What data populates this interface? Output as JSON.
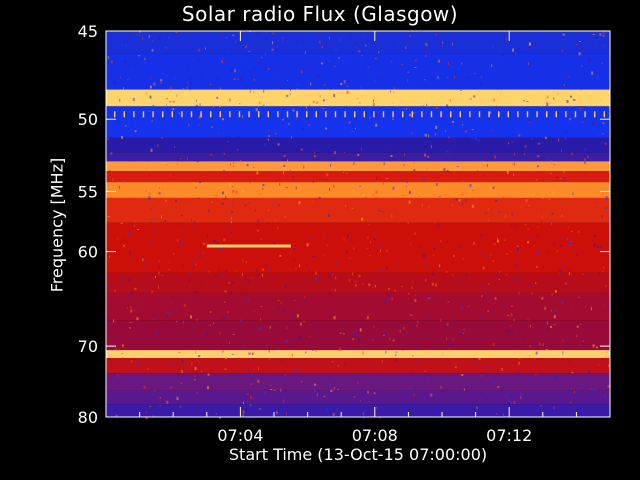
{
  "chart_data": {
    "type": "heatmap",
    "title": "Solar radio Flux (Glasgow)",
    "xlabel": "Start Time (13-Oct-15 07:00:00)",
    "ylabel": "Frequency [MHz]",
    "x_ticks": [
      "07:04",
      "07:08",
      "07:12"
    ],
    "x_tick_minutes": [
      4,
      8,
      12
    ],
    "xlim_minutes": [
      0,
      15
    ],
    "y_ticks": [
      45,
      50,
      55,
      60,
      70,
      80
    ],
    "ylim": [
      45,
      80
    ],
    "y_scale": "reciprocal",
    "bands": [
      {
        "range": [
          45,
          46.2
        ],
        "color": "#1b2fd8"
      },
      {
        "range": [
          46.2,
          48.2
        ],
        "color": "#1530e6"
      },
      {
        "range": [
          48.2,
          49.2
        ],
        "color": "#ffd46a"
      },
      {
        "range": [
          49.2,
          51.2
        ],
        "color": "#1533ec"
      },
      {
        "range": [
          51.2,
          52.2
        ],
        "color": "#2a1aa8"
      },
      {
        "range": [
          52.2,
          52.8
        ],
        "color": "#3a1da0"
      },
      {
        "range": [
          52.8,
          53.5
        ],
        "color": "#ff9a3a"
      },
      {
        "range": [
          53.5,
          54.3
        ],
        "color": "#d81a10"
      },
      {
        "range": [
          54.3,
          55.5
        ],
        "color": "#ff8a2a"
      },
      {
        "range": [
          55.5,
          57.5
        ],
        "color": "#e02a10"
      },
      {
        "range": [
          57.5,
          62.0
        ],
        "color": "#cc0f08"
      },
      {
        "range": [
          62.0,
          64.0
        ],
        "color": "#b70c1a"
      },
      {
        "range": [
          64.0,
          67.0
        ],
        "color": "#a30c30"
      },
      {
        "range": [
          67.0,
          70.5
        ],
        "color": "#970a3a"
      },
      {
        "range": [
          70.5,
          71.5
        ],
        "color": "#ffcf70"
      },
      {
        "range": [
          71.5,
          73.5
        ],
        "color": "#c0101a"
      },
      {
        "range": [
          73.5,
          76.0
        ],
        "color": "#6a1880"
      },
      {
        "range": [
          76.0,
          78.0
        ],
        "color": "#5a1890"
      },
      {
        "range": [
          78.0,
          80.0
        ],
        "color": "#3a1aa8"
      }
    ],
    "features": [
      {
        "type": "horizontal-line",
        "frequency": 59.5,
        "x_minutes": [
          3.0,
          5.5
        ],
        "color": "#ffd46a"
      }
    ]
  }
}
